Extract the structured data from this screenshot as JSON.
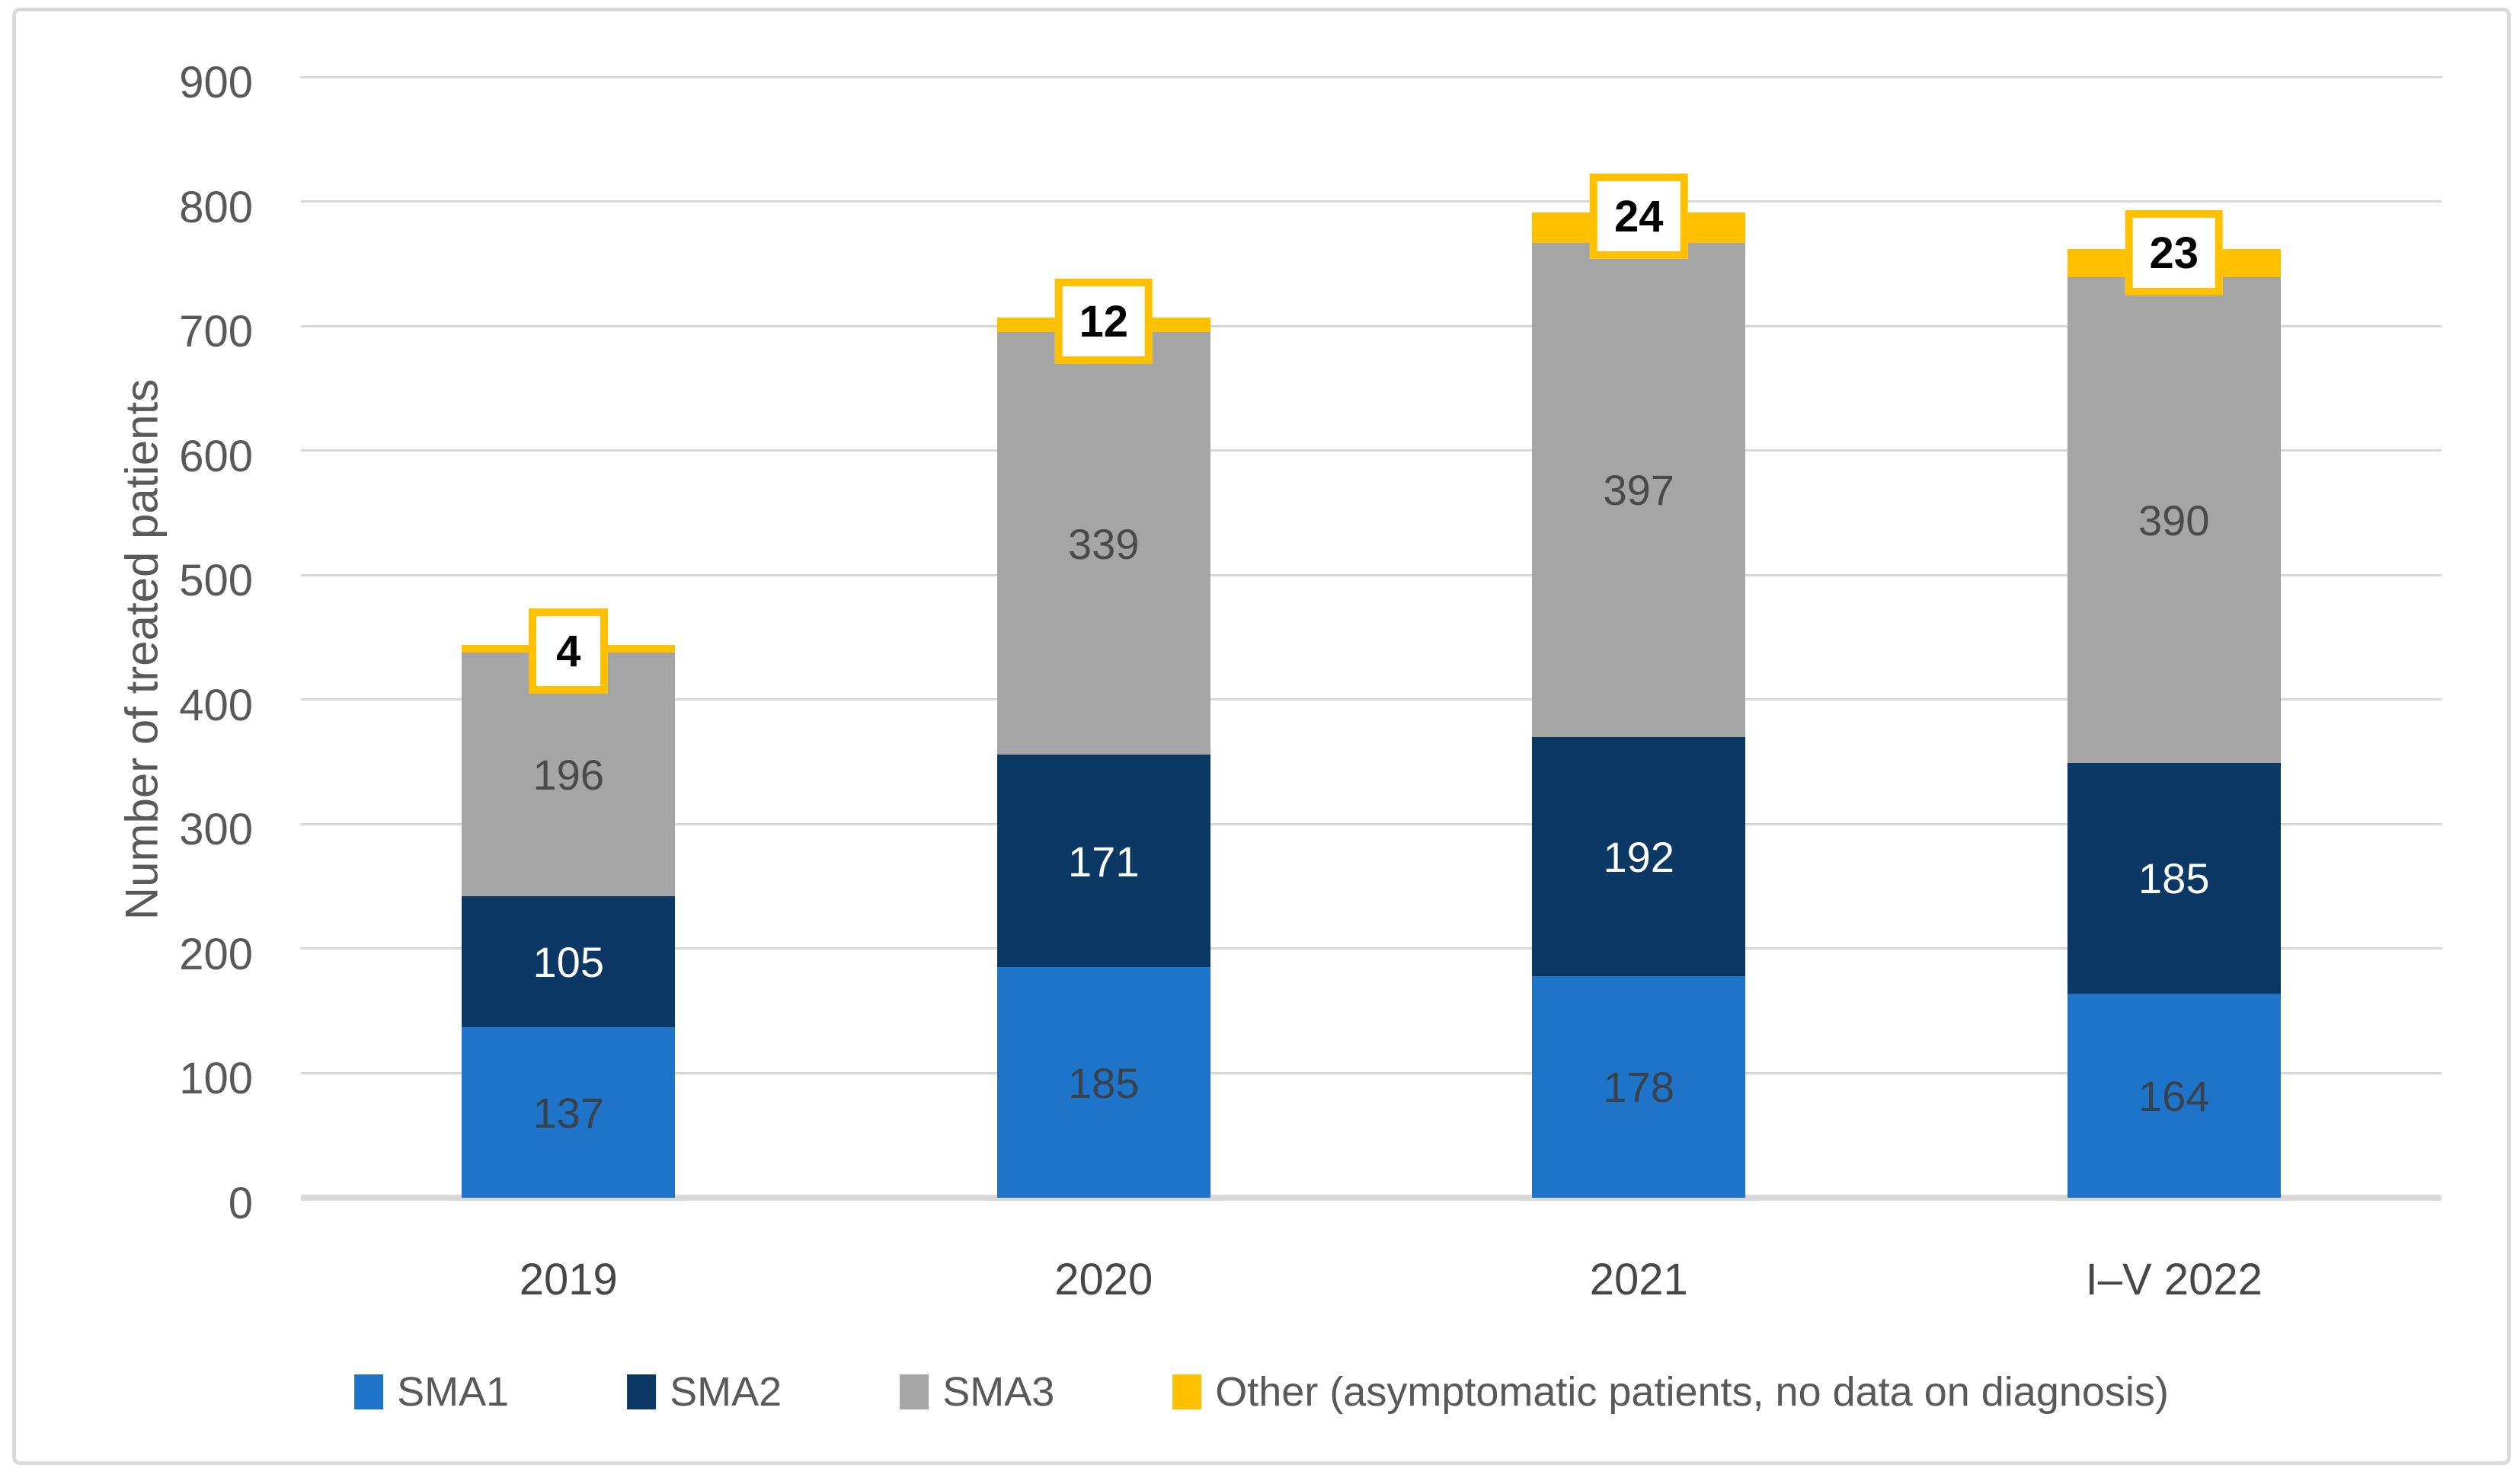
{
  "figure": {
    "background": "#FFFFFF",
    "border_color": "#DBDBDB"
  },
  "chart_data": {
    "type": "bar",
    "stacked": true,
    "title": "",
    "xlabel": "",
    "ylabel": "Number of treated patients",
    "categories": [
      "2019",
      "2020",
      "2021",
      "I–V 2022"
    ],
    "series": [
      {
        "name": "SMA1",
        "color": "#1E74C9",
        "label_color": "#39424B",
        "values": [
          137,
          185,
          178,
          164
        ]
      },
      {
        "name": "SMA2",
        "color": "#0C3866",
        "label_color": "#FFFFFF",
        "values": [
          105,
          171,
          192,
          185
        ]
      },
      {
        "name": "SMA3",
        "color": "#A5A5A5",
        "label_color": "#4A4A4A",
        "values": [
          196,
          339,
          397,
          390
        ]
      },
      {
        "name": "Other (asymptomatic patients, no data on diagnosis)",
        "color": "#FFC000",
        "label_style": "callout",
        "values": [
          4,
          12,
          24,
          23
        ]
      }
    ],
    "ylim": [
      0,
      900
    ],
    "yticks": [
      0,
      100,
      200,
      300,
      400,
      500,
      600,
      700,
      800,
      900
    ],
    "grid": true,
    "legend_position": "bottom"
  },
  "axes": {
    "gridline_color": "#D8D8D8",
    "zero_line_color": "#D9D9D9",
    "ytick_color": "#595959",
    "xtick_color": "#474747"
  },
  "callout": {
    "border_color": "#FFC000",
    "fill_color": "#FFFFFF",
    "text_color": "#000000"
  }
}
